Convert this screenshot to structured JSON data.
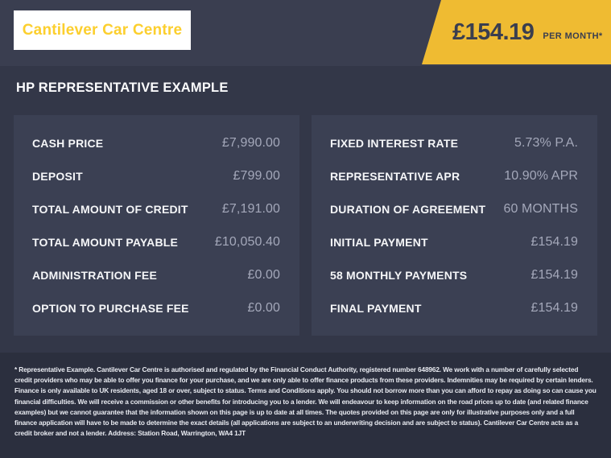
{
  "brand": {
    "logo_text": "Cantilever Car Centre"
  },
  "banner": {
    "price": "£154.19",
    "per_label": "PER MONTH*"
  },
  "heading": "HP REPRESENTATIVE EXAMPLE",
  "panels": {
    "left": {
      "rows": [
        {
          "label": "CASH PRICE",
          "value": "£7,990.00"
        },
        {
          "label": "DEPOSIT",
          "value": "£799.00"
        },
        {
          "label": "TOTAL AMOUNT OF CREDIT",
          "value": "£7,191.00"
        },
        {
          "label": "TOTAL AMOUNT PAYABLE",
          "value": "£10,050.40"
        },
        {
          "label": "ADMINISTRATION FEE",
          "value": "£0.00"
        },
        {
          "label": "OPTION TO PURCHASE FEE",
          "value": "£0.00"
        }
      ]
    },
    "right": {
      "rows": [
        {
          "label": "FIXED INTEREST RATE",
          "value": "5.73% P.A."
        },
        {
          "label": "REPRESENTATIVE APR",
          "value": "10.90% APR"
        },
        {
          "label": "DURATION OF AGREEMENT",
          "value": "60 MONTHS"
        },
        {
          "label": "INITIAL PAYMENT",
          "value": "£154.19"
        },
        {
          "label": "58 MONTHLY PAYMENTS",
          "value": "£154.19"
        },
        {
          "label": "FINAL PAYMENT",
          "value": "£154.19"
        }
      ]
    }
  },
  "footer": {
    "disclaimer": "* Representative Example. Cantilever Car Centre is authorised and regulated by the Financial Conduct Authority, registered number 648962. We work with a number of carefully selected credit providers who may be able to offer you finance for your purchase, and we are only able to offer finance products from these providers. Indemnities may be required by certain lenders. Finance is only available to UK residents, aged 18 or over, subject to status. Terms and Conditions apply. You should not borrow more than you can afford to repay as doing so can cause you financial difficulties. We will receive a commission or other benefits for introducing you to a lender. We will endeavour to keep information on the road prices up to date (and related finance examples) but we cannot guarantee that the information shown on this page is up to date at all times. The quotes provided on this page are only for illustrative purposes only and a full finance application will have to be made to determine the exact details (all applications are subject to an underwriting decision and are subject to status). Cantilever Car Centre acts as a credit broker and not a lender. Address: Station Road, Warrington, WA4 1JT"
  },
  "colors": {
    "header_bg": "#3a3e50",
    "main_bg": "#333748",
    "panel_bg": "#3b4053",
    "footer_bg": "#2b2f3e",
    "banner_yellow": "#efbb32",
    "logo_yellow": "#fccf2e",
    "dark_text_on_yellow": "#3a3e4f",
    "label_text": "#f5f6f8",
    "value_text": "#a4a8ba"
  }
}
